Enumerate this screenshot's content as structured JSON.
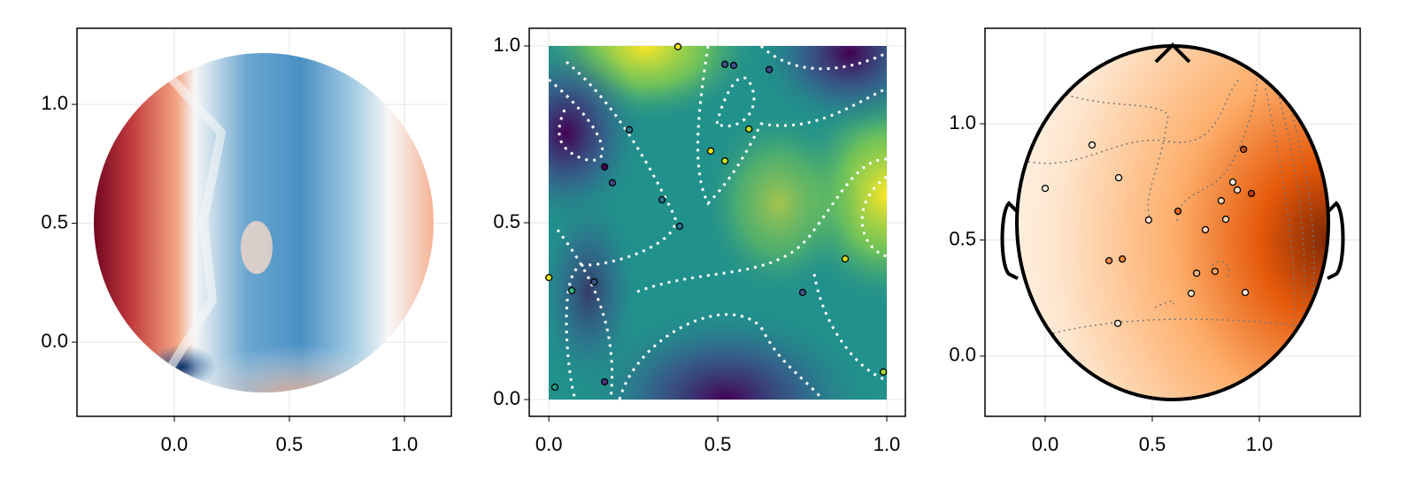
{
  "chart_data": [
    {
      "type": "heatmap",
      "xlim": [
        -0.423,
        1.204
      ],
      "ylim": [
        -0.312,
        1.32
      ],
      "xticks": [
        {
          "value": 0,
          "label": "0.0"
        },
        0.5,
        {
          "value": 1,
          "label": "1.0"
        }
      ],
      "yticks": [
        {
          "value": 0,
          "label": "0.0"
        },
        0.5,
        {
          "value": 1,
          "label": "1.0"
        }
      ],
      "grid": true
    },
    {
      "type": "scatter",
      "xlim": [
        -0.058,
        1.055
      ],
      "ylim": [
        -0.0475,
        1.05
      ],
      "xticks": [
        {
          "value": 0,
          "label": "0.0"
        },
        0.5,
        {
          "value": 1,
          "label": "1.0"
        }
      ],
      "yticks": [
        {
          "value": 0,
          "label": "0.0"
        },
        0.5,
        {
          "value": 1,
          "label": "1.0"
        }
      ],
      "grid": true,
      "x": [
        0.382,
        0.521,
        0.547,
        0.652,
        0.238,
        0.592,
        0.479,
        0.521,
        0.165,
        0.188,
        0.335,
        0.387,
        0.877,
        0.0,
        0.068,
        0.134,
        0.751,
        0.165,
        0.018,
        0.99
      ],
      "y": [
        0.998,
        0.948,
        0.945,
        0.933,
        0.763,
        0.765,
        0.703,
        0.675,
        0.658,
        0.613,
        0.565,
        0.49,
        0.398,
        0.345,
        0.308,
        0.333,
        0.303,
        0.05,
        0.035,
        0.078
      ],
      "colors": [
        "#f5e51f",
        "#3b528b",
        "#3b528b",
        "#3e4a89",
        "#2a788e",
        "#b5de2b",
        "#e8e419",
        "#c8e020",
        "#440154",
        "#414487",
        "#2c728e",
        "#2a788e",
        "#d0e11c",
        "#e5e419",
        "#2fb47c",
        "#3b528b",
        "#3a548c",
        "#46327e",
        "#1f9e89",
        "#9fda3a"
      ]
    },
    {
      "type": "scatter",
      "xlim": [
        -0.281,
        1.471
      ],
      "ylim": [
        -0.259,
        1.411
      ],
      "xticks": [
        {
          "value": 0,
          "label": "0.0"
        },
        0.5,
        {
          "value": 1,
          "label": "1.0"
        }
      ],
      "yticks": [
        {
          "value": 0,
          "label": "0.0"
        },
        0.5,
        {
          "value": 1,
          "label": "1.0"
        }
      ],
      "grid": true,
      "x": [
        0.219,
        0.0,
        0.343,
        0.926,
        0.963,
        0.876,
        0.897,
        0.822,
        0.843,
        0.748,
        0.62,
        0.483,
        0.298,
        0.36,
        0.707,
        0.793,
        0.682,
        0.934,
        0.339
      ],
      "y": [
        0.909,
        0.722,
        0.768,
        0.89,
        0.7,
        0.749,
        0.715,
        0.669,
        0.589,
        0.544,
        0.624,
        0.586,
        0.411,
        0.418,
        0.357,
        0.365,
        0.27,
        0.274,
        0.141
      ],
      "colors": [
        "#fde8d4",
        "#fff5eb",
        "#fff1e3",
        "#c64c0a",
        "#b83c04",
        "#fdf2e6",
        "#fde4cb",
        "#fdd3ae",
        "#fdd8b5",
        "#fdd7b4",
        "#e8631a",
        "#fde3c9",
        "#f4894a",
        "#f3843f",
        "#fbb987",
        "#f7a26a",
        "#fde6ce",
        "#fde8d2",
        "#fef0e2"
      ]
    }
  ]
}
